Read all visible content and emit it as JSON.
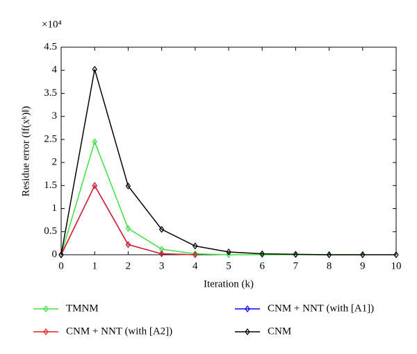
{
  "chart_data": {
    "type": "line",
    "xlabel": "Iteration (k)",
    "ylabel": "Residue error (‖f(xᵏ)‖)",
    "y_scale_label": "×10⁴",
    "x": [
      0,
      1,
      2,
      3,
      4,
      5,
      6,
      7,
      8,
      9,
      10
    ],
    "series": [
      {
        "name": "TMNM",
        "color": "#3ee03e",
        "values": [
          0,
          2.45,
          0.57,
          0.12,
          0.02,
          0,
          0,
          0,
          0,
          0,
          null
        ]
      },
      {
        "name": "CNM + NNT (with [A1])",
        "color": "#0000ff",
        "values": [
          0,
          1.5,
          0.22,
          0.02,
          0,
          null,
          null,
          null,
          null,
          null,
          null
        ]
      },
      {
        "name": "CNM + NNT (with [A2])",
        "color": "#e02020",
        "values": [
          0,
          1.5,
          0.22,
          0.02,
          0,
          null,
          null,
          null,
          null,
          null,
          null
        ]
      },
      {
        "name": "CNM",
        "color": "#000000",
        "values": [
          0,
          4.02,
          1.49,
          0.55,
          0.19,
          0.06,
          0.02,
          0.01,
          0,
          0,
          0
        ]
      }
    ],
    "xlim": [
      0,
      10
    ],
    "xticks": [
      0,
      1,
      2,
      3,
      4,
      5,
      6,
      7,
      8,
      9,
      10
    ],
    "ylim": [
      0,
      4.5
    ],
    "yticks": [
      0,
      0.5,
      1,
      1.5,
      2,
      2.5,
      3,
      3.5,
      4,
      4.5
    ]
  }
}
